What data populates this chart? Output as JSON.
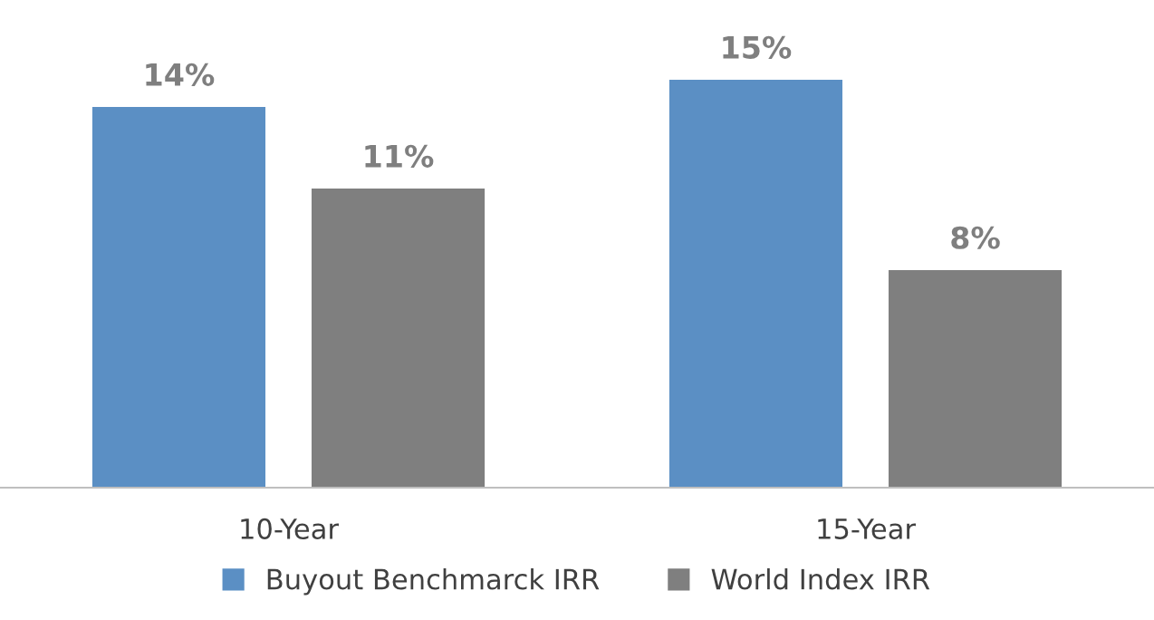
{
  "chart_data": {
    "type": "bar",
    "categories": [
      "10-Year",
      "15-Year"
    ],
    "series": [
      {
        "name": "Buyout Benchmarck IRR",
        "color": "#5b8fc4",
        "values": [
          14,
          15
        ],
        "value_labels": [
          "14%",
          "15%"
        ]
      },
      {
        "name": "World Index IRR",
        "color": "#7f7f7f",
        "values": [
          11,
          8
        ],
        "value_labels": [
          "11%",
          "8%"
        ]
      }
    ],
    "legend": "bottom",
    "grid": false
  }
}
